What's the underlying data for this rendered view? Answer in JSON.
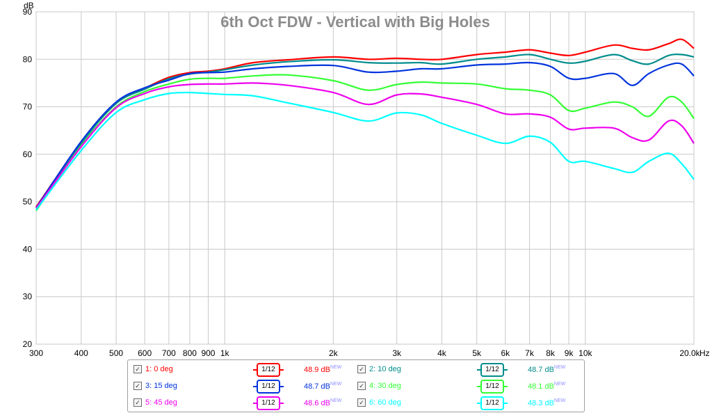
{
  "chart_data": {
    "type": "line",
    "title": "6th Oct FDW - Vertical with Big Holes",
    "ylabel": "dB",
    "xunit": "Hz",
    "xscale": "log",
    "xlim": [
      300,
      20000
    ],
    "ylim": [
      20,
      90
    ],
    "grid": true,
    "x_ticks": [
      {
        "v": 300,
        "label": "300"
      },
      {
        "v": 400,
        "label": "400"
      },
      {
        "v": 500,
        "label": "500"
      },
      {
        "v": 600,
        "label": "600"
      },
      {
        "v": 700,
        "label": "700"
      },
      {
        "v": 800,
        "label": "800"
      },
      {
        "v": 900,
        "label": "900"
      },
      {
        "v": 1000,
        "label": "1k"
      },
      {
        "v": 2000,
        "label": "2k"
      },
      {
        "v": 3000,
        "label": "3k"
      },
      {
        "v": 4000,
        "label": "4k"
      },
      {
        "v": 5000,
        "label": "5k"
      },
      {
        "v": 6000,
        "label": "6k"
      },
      {
        "v": 7000,
        "label": "7k"
      },
      {
        "v": 8000,
        "label": "8k"
      },
      {
        "v": 9000,
        "label": "9k"
      },
      {
        "v": 10000,
        "label": "10k"
      },
      {
        "v": 20000,
        "label": "20.0k"
      }
    ],
    "y_ticks": [
      90,
      80,
      70,
      60,
      50,
      40,
      30,
      20
    ],
    "series": [
      {
        "name": "1: 0 deg",
        "color": "#ff0000",
        "smoothing": "1/12",
        "level": "48.9 dB",
        "points": [
          [
            300,
            48.9
          ],
          [
            400,
            62.5
          ],
          [
            500,
            70.9
          ],
          [
            600,
            73.9
          ],
          [
            700,
            76.2
          ],
          [
            800,
            77.2
          ],
          [
            900,
            77.5
          ],
          [
            1000,
            78.0
          ],
          [
            1200,
            79.3
          ],
          [
            1500,
            79.9
          ],
          [
            2000,
            80.5
          ],
          [
            2500,
            80.0
          ],
          [
            3000,
            80.2
          ],
          [
            3500,
            80.0
          ],
          [
            4000,
            80.0
          ],
          [
            5000,
            81.0
          ],
          [
            6000,
            81.5
          ],
          [
            7000,
            82.0
          ],
          [
            8000,
            81.3
          ],
          [
            9000,
            80.8
          ],
          [
            10000,
            81.5
          ],
          [
            12000,
            83.0
          ],
          [
            13500,
            82.3
          ],
          [
            15000,
            82.0
          ],
          [
            17000,
            83.3
          ],
          [
            18500,
            84.2
          ],
          [
            20000,
            82.3
          ]
        ]
      },
      {
        "name": "2: 10 deg",
        "color": "#008c8c",
        "smoothing": "1/12",
        "level": "48.7 dB",
        "points": [
          [
            300,
            48.7
          ],
          [
            400,
            62.3
          ],
          [
            500,
            70.7
          ],
          [
            600,
            73.7
          ],
          [
            700,
            75.9
          ],
          [
            800,
            76.9
          ],
          [
            900,
            77.3
          ],
          [
            1000,
            77.8
          ],
          [
            1200,
            78.8
          ],
          [
            1500,
            79.5
          ],
          [
            2000,
            79.9
          ],
          [
            2500,
            79.3
          ],
          [
            3000,
            79.2
          ],
          [
            3500,
            79.3
          ],
          [
            4000,
            79.0
          ],
          [
            5000,
            80.0
          ],
          [
            6000,
            80.5
          ],
          [
            7000,
            81.0
          ],
          [
            8000,
            80.0
          ],
          [
            9000,
            79.2
          ],
          [
            10000,
            79.6
          ],
          [
            12000,
            81.0
          ],
          [
            13500,
            79.7
          ],
          [
            15000,
            79.0
          ],
          [
            17000,
            80.8
          ],
          [
            18500,
            81.0
          ],
          [
            20000,
            80.5
          ]
        ]
      },
      {
        "name": "3: 15 deg",
        "color": "#0033dd",
        "smoothing": "1/12",
        "level": "48.7 dB",
        "points": [
          [
            300,
            48.7
          ],
          [
            400,
            62.7
          ],
          [
            500,
            71.0
          ],
          [
            600,
            74.0
          ],
          [
            700,
            75.6
          ],
          [
            800,
            77.0
          ],
          [
            900,
            77.2
          ],
          [
            1000,
            77.3
          ],
          [
            1200,
            78.0
          ],
          [
            1500,
            78.5
          ],
          [
            2000,
            78.7
          ],
          [
            2500,
            77.3
          ],
          [
            3000,
            77.5
          ],
          [
            3500,
            78.0
          ],
          [
            4000,
            78.0
          ],
          [
            5000,
            78.8
          ],
          [
            6000,
            79.0
          ],
          [
            7000,
            79.3
          ],
          [
            8000,
            78.5
          ],
          [
            9000,
            76.0
          ],
          [
            10000,
            76.0
          ],
          [
            12000,
            77.0
          ],
          [
            13500,
            74.5
          ],
          [
            15000,
            77.0
          ],
          [
            17000,
            78.8
          ],
          [
            18500,
            79.0
          ],
          [
            20000,
            76.5
          ]
        ]
      },
      {
        "name": "4: 30 deg",
        "color": "#33ff33",
        "smoothing": "1/12",
        "level": "48.1 dB",
        "points": [
          [
            300,
            48.1
          ],
          [
            400,
            61.8
          ],
          [
            500,
            70.0
          ],
          [
            600,
            73.2
          ],
          [
            700,
            74.8
          ],
          [
            800,
            75.8
          ],
          [
            900,
            76.0
          ],
          [
            1000,
            76.0
          ],
          [
            1200,
            76.5
          ],
          [
            1500,
            76.7
          ],
          [
            2000,
            75.5
          ],
          [
            2500,
            73.5
          ],
          [
            3000,
            74.7
          ],
          [
            3500,
            75.2
          ],
          [
            4000,
            75.0
          ],
          [
            5000,
            74.8
          ],
          [
            6000,
            73.8
          ],
          [
            7000,
            73.5
          ],
          [
            8000,
            72.5
          ],
          [
            9000,
            69.2
          ],
          [
            10000,
            69.7
          ],
          [
            12000,
            71.0
          ],
          [
            13500,
            70.0
          ],
          [
            15000,
            68.0
          ],
          [
            17000,
            72.0
          ],
          [
            18500,
            71.0
          ],
          [
            20000,
            67.5
          ]
        ]
      },
      {
        "name": "5: 45 deg",
        "color": "#ee00ee",
        "smoothing": "1/12",
        "level": "48.6 dB",
        "points": [
          [
            300,
            48.6
          ],
          [
            400,
            61.6
          ],
          [
            500,
            69.8
          ],
          [
            600,
            72.8
          ],
          [
            700,
            74.2
          ],
          [
            800,
            74.7
          ],
          [
            900,
            74.8
          ],
          [
            1000,
            74.8
          ],
          [
            1200,
            75.0
          ],
          [
            1500,
            74.5
          ],
          [
            2000,
            73.0
          ],
          [
            2500,
            70.5
          ],
          [
            3000,
            72.5
          ],
          [
            3500,
            72.7
          ],
          [
            4000,
            72.0
          ],
          [
            5000,
            70.5
          ],
          [
            6000,
            68.5
          ],
          [
            7000,
            68.5
          ],
          [
            8000,
            67.8
          ],
          [
            9000,
            65.3
          ],
          [
            10000,
            65.5
          ],
          [
            12000,
            65.5
          ],
          [
            13500,
            63.5
          ],
          [
            15000,
            63.0
          ],
          [
            17000,
            67.0
          ],
          [
            18500,
            66.0
          ],
          [
            20000,
            62.3
          ]
        ]
      },
      {
        "name": "6: 60 deg",
        "color": "#00ffff",
        "smoothing": "1/12",
        "level": "48.3 dB",
        "points": [
          [
            300,
            48.3
          ],
          [
            400,
            60.8
          ],
          [
            500,
            68.8
          ],
          [
            600,
            71.5
          ],
          [
            700,
            72.8
          ],
          [
            800,
            73.0
          ],
          [
            900,
            72.8
          ],
          [
            1000,
            72.6
          ],
          [
            1200,
            72.3
          ],
          [
            1500,
            70.8
          ],
          [
            2000,
            68.8
          ],
          [
            2500,
            67.0
          ],
          [
            3000,
            68.7
          ],
          [
            3500,
            68.3
          ],
          [
            4000,
            66.5
          ],
          [
            5000,
            64.0
          ],
          [
            6000,
            62.3
          ],
          [
            7000,
            63.8
          ],
          [
            8000,
            62.5
          ],
          [
            9000,
            58.5
          ],
          [
            10000,
            58.5
          ],
          [
            12000,
            57.0
          ],
          [
            13500,
            56.2
          ],
          [
            15000,
            58.5
          ],
          [
            17000,
            60.2
          ],
          [
            18500,
            58.0
          ],
          [
            20000,
            54.7
          ]
        ]
      }
    ]
  }
}
